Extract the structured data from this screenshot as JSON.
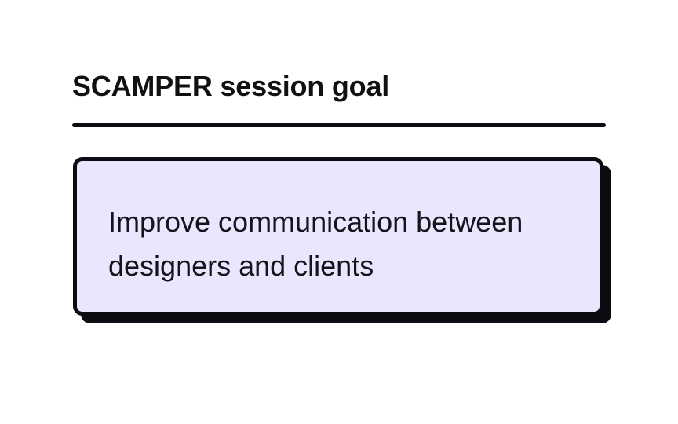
{
  "session": {
    "title": "SCAMPER session goal",
    "goal_text": "Improve communication between designers and clients"
  },
  "colors": {
    "card_background": "#ebe6fd",
    "border": "#0c0c12",
    "text": "#14141a"
  }
}
